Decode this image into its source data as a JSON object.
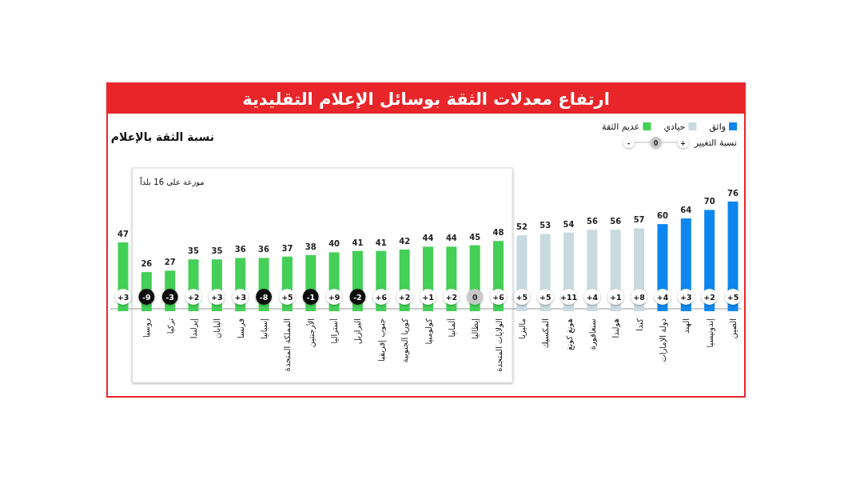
{
  "chart_data": {
    "type": "bar",
    "title": "ارتفاع معدلات الثقة بوسائل الإعلام التقليدية",
    "subtitle": "نسبة الثقة بالإعلام",
    "categories": [
      null,
      "روسيا",
      "تركيا",
      "إيرلندا",
      "اليابان",
      "فرنسا",
      "إسبانيا",
      "المملكة المتحدة",
      "الأرجنتين",
      "أستراليا",
      "البرازيل",
      "جنوب إفريقيا",
      "كوريا الجنوبية",
      "كولومبيا",
      "ألمانيا",
      "إيطاليا",
      "الولايات المتحدة",
      "ماليزيا",
      "المكسيك",
      "هونغ كونغ",
      "سنغافورة",
      "هولندا",
      "كندا",
      "دولة الإمارات",
      "الهند",
      "إندونيسيا",
      "الصين"
    ],
    "series": [
      {
        "name": "عديم الثقة",
        "color": "#44cf57",
        "values": [
          47,
          26,
          27,
          35,
          35,
          36,
          36,
          37,
          38,
          40,
          41,
          41,
          42,
          44,
          44,
          45,
          48,
          null,
          null,
          null,
          null,
          null,
          null,
          null,
          null,
          null,
          null
        ]
      },
      {
        "name": "حيادي",
        "color": "#c9d9e0",
        "values": [
          null,
          null,
          null,
          null,
          null,
          null,
          null,
          null,
          null,
          null,
          null,
          null,
          null,
          null,
          null,
          null,
          null,
          52,
          53,
          54,
          56,
          56,
          57,
          null,
          null,
          null,
          null
        ]
      },
      {
        "name": "واثق",
        "color": "#0d87ef",
        "values": [
          null,
          null,
          null,
          null,
          null,
          null,
          null,
          null,
          null,
          null,
          null,
          null,
          null,
          null,
          null,
          null,
          null,
          null,
          null,
          null,
          null,
          null,
          null,
          60,
          64,
          70,
          76
        ]
      }
    ],
    "data_labels": true,
    "legend": "top right",
    "bands": [
      {
        "axis": "x",
        "from": "روسيا",
        "to": "الولايات المتحدة",
        "label": "موزعة على 16 بلداً",
        "color": "#ffffff"
      }
    ],
    "annotations": [
      "نسبة التغيير",
      "+",
      "0",
      "-",
      {
        "text": "+3"
      },
      {
        "text": "-9",
        "x": "روسيا"
      },
      {
        "text": "-3",
        "x": "تركيا"
      },
      {
        "text": "+2",
        "x": "إيرلندا"
      },
      {
        "text": "+3",
        "x": "اليابان"
      },
      {
        "text": "+3",
        "x": "فرنسا"
      },
      {
        "text": "-8",
        "x": "إسبانيا"
      },
      {
        "text": "+5",
        "x": "المملكة المتحدة"
      },
      {
        "text": "-1",
        "x": "الأرجنتين"
      },
      {
        "text": "+9",
        "x": "أستراليا"
      },
      {
        "text": "-2",
        "x": "البرازيل"
      },
      {
        "text": "+6",
        "x": "جنوب إفريقيا"
      },
      {
        "text": "+2",
        "x": "كوريا الجنوبية"
      },
      {
        "text": "+1",
        "x": "كولومبيا"
      },
      {
        "text": "+2",
        "x": "ألمانيا"
      },
      {
        "text": "0",
        "x": "إيطاليا"
      },
      {
        "text": "+6",
        "x": "الولايات المتحدة"
      },
      {
        "text": "+5",
        "x": "ماليزيا"
      },
      {
        "text": "+5",
        "x": "المكسيك"
      },
      {
        "text": "+11",
        "x": "هونغ كونغ"
      },
      {
        "text": "+4",
        "x": "سنغافورة"
      },
      {
        "text": "+1",
        "x": "هولندا"
      },
      {
        "text": "+8",
        "x": "كندا"
      },
      {
        "text": "+4",
        "x": "دولة الإمارات"
      },
      {
        "text": "+3",
        "x": "الهند"
      },
      {
        "text": "+2",
        "x": "إندونيسيا"
      },
      {
        "text": "+5",
        "x": "الصين"
      }
    ]
  }
}
